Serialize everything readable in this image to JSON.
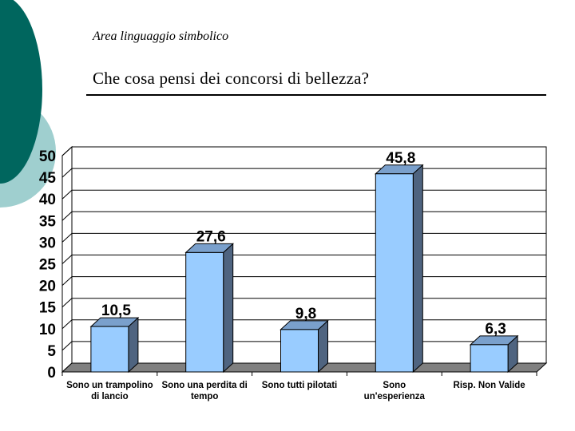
{
  "header": {
    "title": "Area linguaggio simbolico",
    "question": "Che cosa pensi dei concorsi di bellezza?"
  },
  "colors": {
    "deco_dark": "#00665e",
    "deco_light": "#9fcfcf",
    "bar_front": "#99ccff",
    "bar_side": "#4f6480",
    "bar_top": "#7aa0cc",
    "floor": "#808080"
  },
  "chart_data": {
    "type": "bar",
    "title": "",
    "xlabel": "",
    "ylabel": "",
    "ylim": [
      0,
      50
    ],
    "yticks": [
      "0",
      "5",
      "10",
      "15",
      "20",
      "25",
      "30",
      "35",
      "40",
      "45",
      "50"
    ],
    "categories": [
      [
        "Sono un trampolino",
        "di lancio"
      ],
      [
        "Sono una perdita di",
        "tempo"
      ],
      [
        "Sono tutti pilotati"
      ],
      [
        "Sono",
        "un'esperienza"
      ],
      [
        "Risp. Non Valide"
      ]
    ],
    "values": [
      10.5,
      27.6,
      9.8,
      45.8,
      6.3
    ],
    "value_labels": [
      "10,5",
      "27,6",
      "9,8",
      "45,8",
      "6,3"
    ]
  }
}
